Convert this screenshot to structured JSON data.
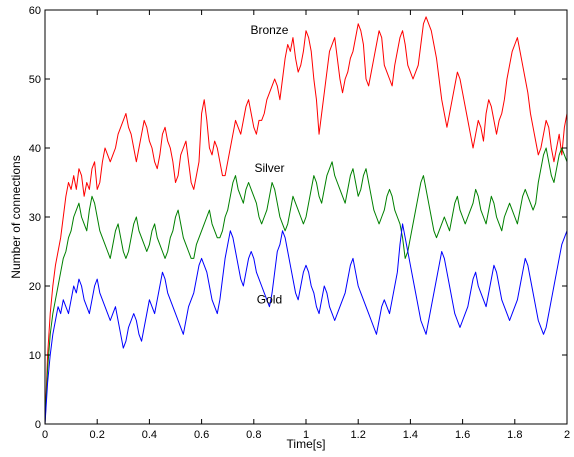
{
  "chart_data": {
    "type": "line",
    "xlabel": "Time[s]",
    "ylabel": "Number of connections",
    "xlim": [
      0,
      2
    ],
    "ylim": [
      0,
      60
    ],
    "xticks": [
      0,
      0.2,
      0.4,
      0.6,
      0.8,
      1,
      1.2,
      1.4,
      1.6,
      1.8,
      2
    ],
    "xtick_labels": [
      "0",
      "0.2",
      "0.4",
      "0.6",
      "0.8",
      "1",
      "1.2",
      "1.4",
      "1.6",
      "1.8",
      "2"
    ],
    "yticks": [
      0,
      10,
      20,
      30,
      40,
      50,
      60
    ],
    "ytick_labels": [
      "0",
      "10",
      "20",
      "30",
      "40",
      "50",
      "60"
    ],
    "grid": false,
    "legend": "none",
    "annotations": [
      {
        "text": "Bronze",
        "x": 0.86,
        "y": 56.5
      },
      {
        "text": "Silver",
        "x": 0.86,
        "y": 36.5
      },
      {
        "text": "Gold",
        "x": 0.86,
        "y": 17.5
      }
    ],
    "series": [
      {
        "color": "#ff0000",
        "x": [
          0,
          0.01,
          0.02,
          0.03,
          0.04,
          0.05,
          0.06,
          0.07,
          0.08,
          0.09,
          0.1,
          0.11,
          0.12,
          0.13,
          0.14,
          0.15,
          0.16,
          0.17,
          0.18,
          0.19,
          0.2,
          0.21,
          0.22,
          0.23,
          0.24,
          0.25,
          0.26,
          0.27,
          0.28,
          0.29,
          0.3,
          0.31,
          0.32,
          0.33,
          0.34,
          0.35,
          0.36,
          0.37,
          0.38,
          0.39,
          0.4,
          0.41,
          0.42,
          0.43,
          0.44,
          0.45,
          0.46,
          0.47,
          0.48,
          0.49,
          0.5,
          0.51,
          0.52,
          0.53,
          0.54,
          0.55,
          0.56,
          0.57,
          0.58,
          0.59,
          0.6,
          0.61,
          0.62,
          0.63,
          0.64,
          0.65,
          0.66,
          0.67,
          0.68,
          0.69,
          0.7,
          0.71,
          0.72,
          0.73,
          0.74,
          0.75,
          0.76,
          0.77,
          0.78,
          0.79,
          0.8,
          0.81,
          0.82,
          0.83,
          0.84,
          0.85,
          0.86,
          0.87,
          0.88,
          0.89,
          0.9,
          0.91,
          0.92,
          0.93,
          0.94,
          0.95,
          0.96,
          0.97,
          0.98,
          0.99,
          1.0,
          1.01,
          1.02,
          1.03,
          1.04,
          1.05,
          1.06,
          1.07,
          1.08,
          1.09,
          1.1,
          1.11,
          1.12,
          1.13,
          1.14,
          1.15,
          1.16,
          1.17,
          1.18,
          1.19,
          1.2,
          1.21,
          1.22,
          1.23,
          1.24,
          1.25,
          1.26,
          1.27,
          1.28,
          1.29,
          1.3,
          1.31,
          1.32,
          1.33,
          1.34,
          1.35,
          1.36,
          1.37,
          1.38,
          1.39,
          1.4,
          1.41,
          1.42,
          1.43,
          1.44,
          1.45,
          1.46,
          1.47,
          1.48,
          1.49,
          1.5,
          1.51,
          1.52,
          1.53,
          1.54,
          1.55,
          1.56,
          1.57,
          1.58,
          1.59,
          1.6,
          1.61,
          1.62,
          1.63,
          1.64,
          1.65,
          1.66,
          1.67,
          1.68,
          1.69,
          1.7,
          1.71,
          1.72,
          1.73,
          1.74,
          1.75,
          1.76,
          1.77,
          1.78,
          1.79,
          1.8,
          1.81,
          1.82,
          1.83,
          1.84,
          1.85,
          1.86,
          1.87,
          1.88,
          1.89,
          1.9,
          1.91,
          1.92,
          1.93,
          1.94,
          1.95,
          1.96,
          1.97,
          1.98,
          1.99,
          2.0
        ],
        "values": [
          0,
          10,
          16,
          20,
          23,
          25,
          27,
          30,
          33,
          35,
          34,
          36,
          34,
          37,
          36,
          33,
          35,
          34,
          37,
          38,
          34,
          35,
          38,
          40,
          39,
          38,
          39,
          40,
          42,
          43,
          44,
          45,
          43,
          42,
          40,
          38,
          40,
          42,
          44,
          43,
          41,
          40,
          38,
          37,
          39,
          42,
          43,
          41,
          40,
          38,
          35,
          36,
          39,
          40,
          41,
          38,
          35,
          34,
          36,
          38,
          45,
          47,
          44,
          40,
          39,
          41,
          40,
          38,
          36,
          36,
          38,
          40,
          42,
          44,
          43,
          42,
          44,
          46,
          47,
          45,
          43,
          42,
          44,
          44,
          45,
          47,
          48,
          49,
          50,
          49,
          47,
          50,
          53,
          55,
          54,
          56,
          53,
          51,
          52,
          54,
          57,
          56,
          54,
          50,
          47,
          42,
          45,
          48,
          51,
          54,
          55,
          56,
          53,
          50,
          48,
          50,
          51,
          53,
          54,
          56,
          58,
          57,
          55,
          50,
          49,
          51,
          53,
          55,
          57,
          56,
          52,
          51,
          50,
          49,
          52,
          54,
          56,
          57,
          55,
          52,
          51,
          50,
          51,
          52,
          55,
          58,
          59,
          58,
          57,
          55,
          53,
          50,
          47,
          45,
          43,
          45,
          47,
          49,
          51,
          50,
          48,
          46,
          44,
          42,
          40,
          42,
          44,
          43,
          41,
          45,
          47,
          46,
          44,
          42,
          44,
          45,
          47,
          50,
          52,
          54,
          55,
          56,
          54,
          52,
          50,
          48,
          45,
          43,
          41,
          39,
          40,
          42,
          44,
          43,
          40,
          38,
          40,
          42,
          39,
          43,
          45
        ]
      },
      {
        "color": "#008000",
        "x": [
          0,
          0.01,
          0.02,
          0.03,
          0.04,
          0.05,
          0.06,
          0.07,
          0.08,
          0.09,
          0.1,
          0.11,
          0.12,
          0.13,
          0.14,
          0.15,
          0.16,
          0.17,
          0.18,
          0.19,
          0.2,
          0.21,
          0.22,
          0.23,
          0.24,
          0.25,
          0.26,
          0.27,
          0.28,
          0.29,
          0.3,
          0.31,
          0.32,
          0.33,
          0.34,
          0.35,
          0.36,
          0.37,
          0.38,
          0.39,
          0.4,
          0.41,
          0.42,
          0.43,
          0.44,
          0.45,
          0.46,
          0.47,
          0.48,
          0.49,
          0.5,
          0.51,
          0.52,
          0.53,
          0.54,
          0.55,
          0.56,
          0.57,
          0.58,
          0.59,
          0.6,
          0.61,
          0.62,
          0.63,
          0.64,
          0.65,
          0.66,
          0.67,
          0.68,
          0.69,
          0.7,
          0.71,
          0.72,
          0.73,
          0.74,
          0.75,
          0.76,
          0.77,
          0.78,
          0.79,
          0.8,
          0.81,
          0.82,
          0.83,
          0.84,
          0.85,
          0.86,
          0.87,
          0.88,
          0.89,
          0.9,
          0.91,
          0.92,
          0.93,
          0.94,
          0.95,
          0.96,
          0.97,
          0.98,
          0.99,
          1.0,
          1.01,
          1.02,
          1.03,
          1.04,
          1.05,
          1.06,
          1.07,
          1.08,
          1.09,
          1.1,
          1.11,
          1.12,
          1.13,
          1.14,
          1.15,
          1.16,
          1.17,
          1.18,
          1.19,
          1.2,
          1.21,
          1.22,
          1.23,
          1.24,
          1.25,
          1.26,
          1.27,
          1.28,
          1.29,
          1.3,
          1.31,
          1.32,
          1.33,
          1.34,
          1.35,
          1.36,
          1.37,
          1.38,
          1.39,
          1.4,
          1.41,
          1.42,
          1.43,
          1.44,
          1.45,
          1.46,
          1.47,
          1.48,
          1.49,
          1.5,
          1.51,
          1.52,
          1.53,
          1.54,
          1.55,
          1.56,
          1.57,
          1.58,
          1.59,
          1.6,
          1.61,
          1.62,
          1.63,
          1.64,
          1.65,
          1.66,
          1.67,
          1.68,
          1.69,
          1.7,
          1.71,
          1.72,
          1.73,
          1.74,
          1.75,
          1.76,
          1.77,
          1.78,
          1.79,
          1.8,
          1.81,
          1.82,
          1.83,
          1.84,
          1.85,
          1.86,
          1.87,
          1.88,
          1.89,
          1.9,
          1.91,
          1.92,
          1.93,
          1.94,
          1.95,
          1.96,
          1.97,
          1.98,
          1.99,
          2.0
        ],
        "values": [
          0,
          8,
          13,
          16,
          18,
          20,
          22,
          24,
          25,
          27,
          28,
          30,
          31,
          32,
          30,
          29,
          28,
          31,
          33,
          32,
          30,
          28,
          27,
          26,
          25,
          24,
          26,
          28,
          29,
          27,
          25,
          24,
          25,
          27,
          29,
          30,
          28,
          27,
          26,
          25,
          26,
          28,
          29,
          27,
          26,
          25,
          24,
          25,
          27,
          28,
          30,
          31,
          29,
          27,
          26,
          25,
          24,
          24,
          26,
          27,
          28,
          29,
          30,
          31,
          29,
          28,
          27,
          27,
          28,
          30,
          31,
          33,
          35,
          36,
          34,
          33,
          32,
          34,
          35,
          34,
          33,
          32,
          30,
          29,
          30,
          31,
          33,
          35,
          34,
          32,
          30,
          29,
          28,
          29,
          31,
          33,
          32,
          31,
          30,
          29,
          30,
          32,
          34,
          36,
          35,
          33,
          32,
          34,
          36,
          37,
          38,
          36,
          35,
          34,
          33,
          32,
          34,
          36,
          37,
          35,
          33,
          34,
          36,
          37,
          35,
          33,
          31,
          30,
          29,
          30,
          31,
          33,
          34,
          33,
          31,
          30,
          29,
          27,
          24,
          25,
          27,
          29,
          31,
          33,
          35,
          36,
          34,
          32,
          30,
          28,
          27,
          28,
          29,
          30,
          29,
          28,
          30,
          32,
          33,
          31,
          30,
          29,
          30,
          31,
          32,
          34,
          33,
          31,
          30,
          29,
          31,
          33,
          32,
          30,
          29,
          28,
          30,
          31,
          32,
          31,
          30,
          29,
          31,
          33,
          34,
          33,
          32,
          31,
          32,
          35,
          37,
          39,
          40,
          38,
          36,
          35,
          37,
          39,
          40,
          39,
          38
        ]
      },
      {
        "color": "#0000ff",
        "x": [
          0,
          0.01,
          0.02,
          0.03,
          0.04,
          0.05,
          0.06,
          0.07,
          0.08,
          0.09,
          0.1,
          0.11,
          0.12,
          0.13,
          0.14,
          0.15,
          0.16,
          0.17,
          0.18,
          0.19,
          0.2,
          0.21,
          0.22,
          0.23,
          0.24,
          0.25,
          0.26,
          0.27,
          0.28,
          0.29,
          0.3,
          0.31,
          0.32,
          0.33,
          0.34,
          0.35,
          0.36,
          0.37,
          0.38,
          0.39,
          0.4,
          0.41,
          0.42,
          0.43,
          0.44,
          0.45,
          0.46,
          0.47,
          0.48,
          0.49,
          0.5,
          0.51,
          0.52,
          0.53,
          0.54,
          0.55,
          0.56,
          0.57,
          0.58,
          0.59,
          0.6,
          0.61,
          0.62,
          0.63,
          0.64,
          0.65,
          0.66,
          0.67,
          0.68,
          0.69,
          0.7,
          0.71,
          0.72,
          0.73,
          0.74,
          0.75,
          0.76,
          0.77,
          0.78,
          0.79,
          0.8,
          0.81,
          0.82,
          0.83,
          0.84,
          0.85,
          0.86,
          0.87,
          0.88,
          0.89,
          0.9,
          0.91,
          0.92,
          0.93,
          0.94,
          0.95,
          0.96,
          0.97,
          0.98,
          0.99,
          1.0,
          1.01,
          1.02,
          1.03,
          1.04,
          1.05,
          1.06,
          1.07,
          1.08,
          1.09,
          1.1,
          1.11,
          1.12,
          1.13,
          1.14,
          1.15,
          1.16,
          1.17,
          1.18,
          1.19,
          1.2,
          1.21,
          1.22,
          1.23,
          1.24,
          1.25,
          1.26,
          1.27,
          1.28,
          1.29,
          1.3,
          1.31,
          1.32,
          1.33,
          1.34,
          1.35,
          1.36,
          1.37,
          1.38,
          1.39,
          1.4,
          1.41,
          1.42,
          1.43,
          1.44,
          1.45,
          1.46,
          1.47,
          1.48,
          1.49,
          1.5,
          1.51,
          1.52,
          1.53,
          1.54,
          1.55,
          1.56,
          1.57,
          1.58,
          1.59,
          1.6,
          1.61,
          1.62,
          1.63,
          1.64,
          1.65,
          1.66,
          1.67,
          1.68,
          1.69,
          1.7,
          1.71,
          1.72,
          1.73,
          1.74,
          1.75,
          1.76,
          1.77,
          1.78,
          1.79,
          1.8,
          1.81,
          1.82,
          1.83,
          1.84,
          1.85,
          1.86,
          1.87,
          1.88,
          1.89,
          1.9,
          1.91,
          1.92,
          1.93,
          1.94,
          1.95,
          1.96,
          1.97,
          1.98,
          1.99,
          2.0
        ],
        "values": [
          0,
          6,
          10,
          13,
          15,
          17,
          16,
          18,
          17,
          16,
          18,
          20,
          19,
          21,
          20,
          18,
          17,
          16,
          18,
          20,
          21,
          19,
          18,
          17,
          16,
          15,
          16,
          17,
          15,
          13,
          11,
          12,
          14,
          15,
          16,
          15,
          13,
          12,
          14,
          16,
          18,
          17,
          16,
          18,
          20,
          22,
          21,
          19,
          18,
          17,
          16,
          15,
          14,
          13,
          15,
          17,
          18,
          19,
          21,
          23,
          24,
          23,
          22,
          20,
          18,
          17,
          16,
          18,
          21,
          24,
          26,
          28,
          27,
          25,
          23,
          21,
          20,
          22,
          24,
          25,
          24,
          22,
          21,
          20,
          19,
          18,
          17,
          19,
          22,
          25,
          26,
          28,
          27,
          25,
          23,
          21,
          19,
          18,
          20,
          22,
          23,
          22,
          20,
          19,
          17,
          16,
          18,
          20,
          19,
          17,
          16,
          15,
          16,
          17,
          18,
          19,
          21,
          23,
          24,
          22,
          20,
          19,
          18,
          17,
          16,
          15,
          14,
          13,
          15,
          17,
          18,
          17,
          16,
          18,
          20,
          22,
          26,
          29,
          27,
          25,
          23,
          21,
          19,
          17,
          15,
          14,
          13,
          15,
          17,
          19,
          21,
          23,
          25,
          24,
          22,
          20,
          18,
          16,
          15,
          14,
          15,
          16,
          17,
          19,
          21,
          22,
          20,
          19,
          18,
          17,
          19,
          21,
          23,
          22,
          20,
          18,
          17,
          16,
          15,
          16,
          17,
          18,
          20,
          22,
          24,
          23,
          21,
          19,
          17,
          15,
          14,
          13,
          14,
          16,
          18,
          20,
          22,
          24,
          26,
          27,
          28
        ]
      }
    ]
  }
}
